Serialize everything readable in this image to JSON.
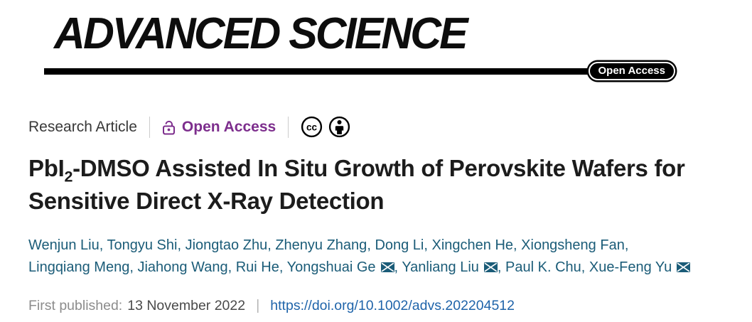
{
  "journal": {
    "logo_text": "ADVANCED SCIENCE",
    "open_access_badge": "Open Access"
  },
  "meta_row": {
    "article_type": "Research Article",
    "open_access_label": "Open Access",
    "license": {
      "icons": [
        "cc-icon",
        "cc-by-person-icon"
      ]
    }
  },
  "title": {
    "line1_pre": "PbI",
    "line1_sub": "2",
    "line1_rest": "-DMSO Assisted In Situ Growth of Perovskite Wafers for",
    "line2": "Sensitive Direct X-Ray Detection"
  },
  "authors": [
    {
      "name": "Wenjun Liu"
    },
    {
      "name": "Tongyu Shi"
    },
    {
      "name": "Jiongtao Zhu"
    },
    {
      "name": "Zhenyu Zhang"
    },
    {
      "name": "Dong Li"
    },
    {
      "name": "Xingchen He"
    },
    {
      "name": "Xiongsheng Fan",
      "break_after": true
    },
    {
      "name": "Lingqiang Meng"
    },
    {
      "name": "Jiahong Wang"
    },
    {
      "name": "Rui He"
    },
    {
      "name": "Yongshuai Ge",
      "email": true
    },
    {
      "name": "Yanliang Liu",
      "email": true
    },
    {
      "name": "Paul K. Chu"
    },
    {
      "name": "Xue-Feng Yu",
      "email": true
    }
  ],
  "publication": {
    "label": "First published:",
    "date": "13 November 2022",
    "separator": "|",
    "doi_url": "https://doi.org/10.1002/advs.202204512"
  },
  "colors": {
    "open_access_purple": "#7D2E8D",
    "author_link_teal": "#1B5C78",
    "doi_link_blue": "#1F64AA",
    "logo_black": "#0d0d0d"
  }
}
